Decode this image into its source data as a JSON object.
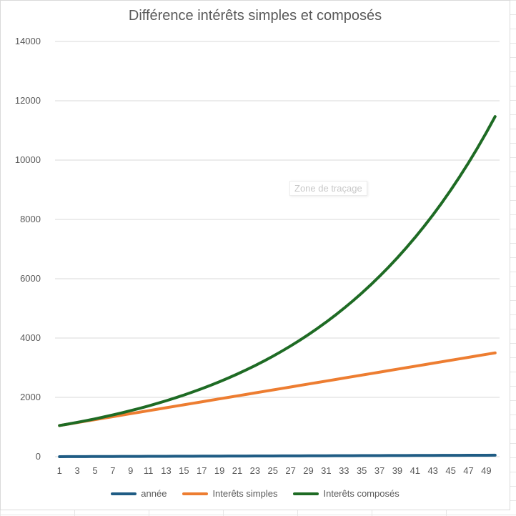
{
  "chart_data": {
    "type": "line",
    "title": "Différence intérêts simples et composés",
    "xlabel": "",
    "ylabel": "",
    "ylim": [
      0,
      14000
    ],
    "y_ticks": [
      "0",
      "2000",
      "4000",
      "6000",
      "8000",
      "10000",
      "12000",
      "14000"
    ],
    "x_tick_labels": [
      "1",
      "3",
      "5",
      "7",
      "9",
      "11",
      "13",
      "15",
      "17",
      "19",
      "21",
      "23",
      "25",
      "27",
      "29",
      "31",
      "33",
      "35",
      "37",
      "39",
      "41",
      "43",
      "45",
      "47",
      "49"
    ],
    "grid": true,
    "legend_position": "bottom",
    "categories": [
      1,
      2,
      3,
      4,
      5,
      6,
      7,
      8,
      9,
      10,
      11,
      12,
      13,
      14,
      15,
      16,
      17,
      18,
      19,
      20,
      21,
      22,
      23,
      24,
      25,
      26,
      27,
      28,
      29,
      30,
      31,
      32,
      33,
      34,
      35,
      36,
      37,
      38,
      39,
      40,
      41,
      42,
      43,
      44,
      45,
      46,
      47,
      48,
      49,
      50
    ],
    "series": [
      {
        "name": "année",
        "color": "#1f5c84",
        "values": [
          1,
          2,
          3,
          4,
          5,
          6,
          7,
          8,
          9,
          10,
          11,
          12,
          13,
          14,
          15,
          16,
          17,
          18,
          19,
          20,
          21,
          22,
          23,
          24,
          25,
          26,
          27,
          28,
          29,
          30,
          31,
          32,
          33,
          34,
          35,
          36,
          37,
          38,
          39,
          40,
          41,
          42,
          43,
          44,
          45,
          46,
          47,
          48,
          49,
          50
        ]
      },
      {
        "name": "Interêts simples",
        "color": "#ed7d31",
        "values": [
          1050,
          1100,
          1150,
          1200,
          1250,
          1300,
          1350,
          1400,
          1450,
          1500,
          1550,
          1600,
          1650,
          1700,
          1750,
          1800,
          1850,
          1900,
          1950,
          2000,
          2050,
          2100,
          2150,
          2200,
          2250,
          2300,
          2350,
          2400,
          2450,
          2500,
          2550,
          2600,
          2650,
          2700,
          2750,
          2800,
          2850,
          2900,
          2950,
          3000,
          3050,
          3100,
          3150,
          3200,
          3250,
          3300,
          3350,
          3400,
          3450,
          3500
        ]
      },
      {
        "name": "Interêts composés",
        "color": "#1e6b24",
        "values": [
          1050,
          1102.5,
          1157.6,
          1215.5,
          1276.3,
          1340.1,
          1407.1,
          1477.5,
          1551.3,
          1628.9,
          1710.3,
          1795.9,
          1885.6,
          1979.9,
          2078.9,
          2182.9,
          2292,
          2406.6,
          2527,
          2653.3,
          2786,
          2925.3,
          3071.5,
          3225.1,
          3386.4,
          3555.7,
          3733.5,
          3920.1,
          4116.1,
          4321.9,
          4538,
          4764.9,
          5003.2,
          5253.3,
          5516,
          5791.8,
          6081.4,
          6385.5,
          6704.8,
          7040,
          7392,
          7761.6,
          8149.7,
          8557.2,
          8985,
          9434.3,
          9906,
          10401.3,
          10921.4,
          11467.4
        ]
      }
    ]
  },
  "overlay": {
    "tooltip": "Zone de traçage"
  }
}
